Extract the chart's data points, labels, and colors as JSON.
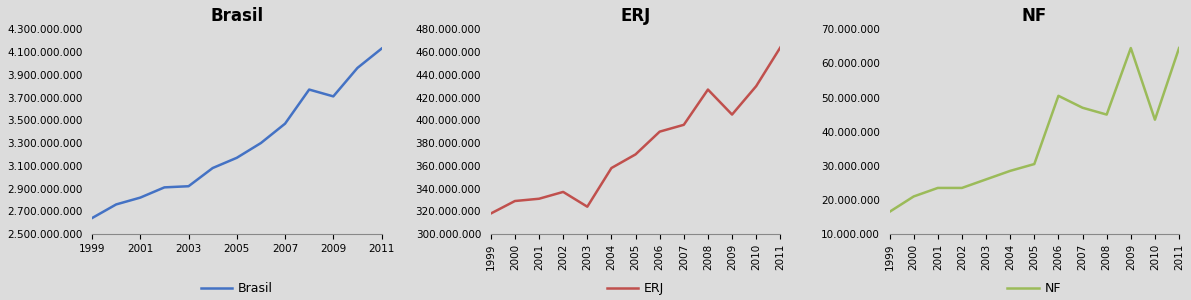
{
  "years": [
    1999,
    2000,
    2001,
    2002,
    2003,
    2004,
    2005,
    2006,
    2007,
    2008,
    2009,
    2010,
    2011
  ],
  "brasil": [
    2640000000,
    2760000000,
    2820000000,
    2910000000,
    2920000000,
    3080000000,
    3170000000,
    3300000000,
    3470000000,
    3770000000,
    3710000000,
    3960000000,
    4130000000
  ],
  "erj": [
    318000000,
    329000000,
    331000000,
    337000000,
    324000000,
    358000000,
    370000000,
    390000000,
    396000000,
    427000000,
    405000000,
    430000000,
    464000000
  ],
  "nf": [
    16500000,
    21000000,
    23500000,
    23500000,
    26000000,
    28500000,
    30500000,
    50500000,
    47000000,
    45000000,
    64500000,
    43500000,
    64500000
  ],
  "brasil_color": "#4472C4",
  "erj_color": "#C0504D",
  "nf_color": "#9BBB59",
  "bg_color": "#DCDCDC",
  "title_brasil": "Brasil",
  "title_erj": "ERJ",
  "title_nf": "NF",
  "brasil_ylim": [
    2500000000,
    4300000000
  ],
  "brasil_yticks": [
    2500000000,
    2700000000,
    2900000000,
    3100000000,
    3300000000,
    3500000000,
    3700000000,
    3900000000,
    4100000000,
    4300000000
  ],
  "erj_ylim": [
    300000000,
    480000000
  ],
  "erj_yticks": [
    300000000,
    320000000,
    340000000,
    360000000,
    380000000,
    400000000,
    420000000,
    440000000,
    460000000,
    480000000
  ],
  "nf_ylim": [
    10000000,
    70000000
  ],
  "nf_yticks": [
    10000000,
    20000000,
    30000000,
    40000000,
    50000000,
    60000000,
    70000000
  ],
  "brasil_xticks": [
    1999,
    2001,
    2003,
    2005,
    2007,
    2009,
    2011
  ],
  "erj_xticks": [
    1999,
    2000,
    2001,
    2002,
    2003,
    2004,
    2005,
    2006,
    2007,
    2008,
    2009,
    2010,
    2011
  ],
  "nf_xticks": [
    1999,
    2000,
    2001,
    2002,
    2003,
    2004,
    2005,
    2006,
    2007,
    2008,
    2009,
    2010,
    2011
  ],
  "title_fontsize": 12,
  "tick_fontsize": 7.5,
  "legend_fontsize": 9
}
